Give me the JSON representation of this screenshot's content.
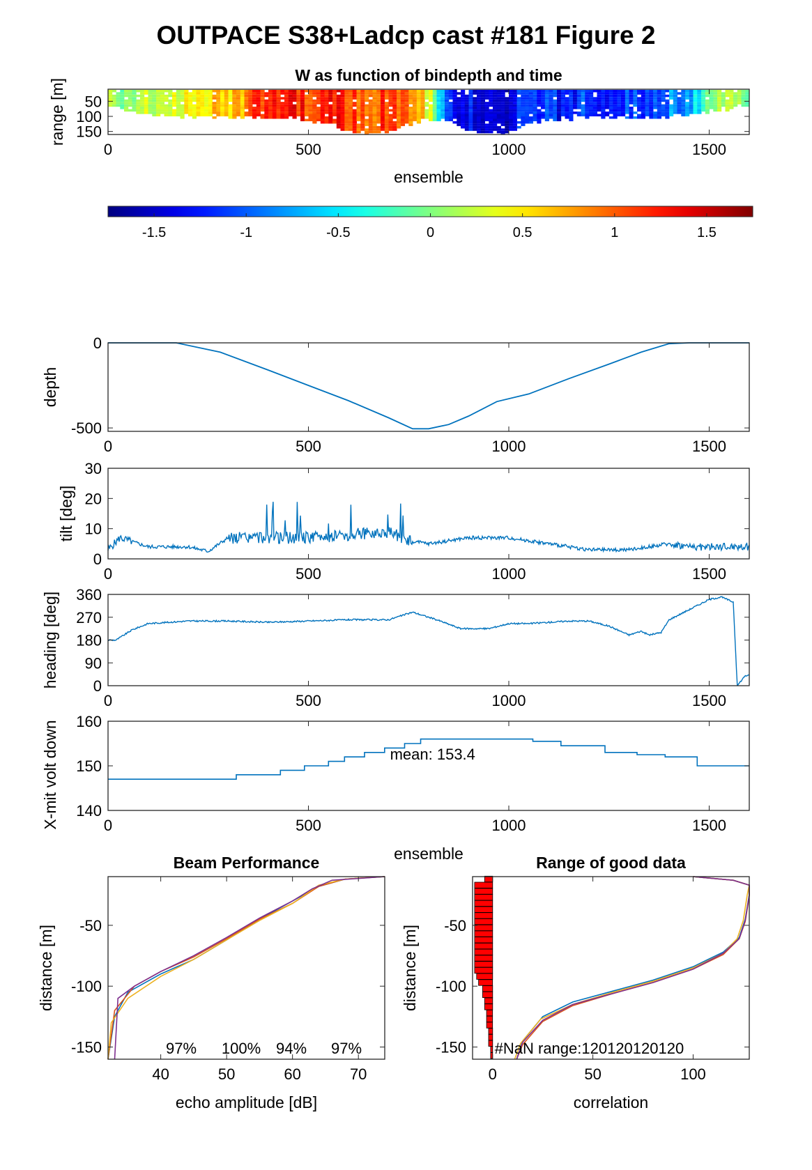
{
  "figure": {
    "title": "OUTPACE S38+Ladcp cast #181 Figure 2"
  },
  "chart_data": [
    {
      "id": "w_panel",
      "type": "heatmap",
      "title": "W as function of bindepth and time",
      "xlabel": "ensemble",
      "ylabel": "range [m]",
      "xlim": [
        0,
        1600
      ],
      "ylim": [
        160,
        10
      ],
      "xticks": [
        "0",
        "500",
        "1000",
        "1500"
      ],
      "yticks": [
        "50",
        "100",
        "150"
      ],
      "colormap": "jet",
      "clim": [
        -1.75,
        1.75
      ],
      "colorbar_ticks": [
        "-1.5",
        "-1",
        "-0.5",
        "0",
        "0.5",
        "1",
        "1.5"
      ],
      "w_profile": {
        "x": [
          0,
          50,
          100,
          150,
          200,
          250,
          300,
          350,
          400,
          450,
          500,
          550,
          600,
          650,
          700,
          750,
          800,
          850,
          900,
          950,
          1000,
          1050,
          1100,
          1150,
          1200,
          1250,
          1300,
          1350,
          1400,
          1450,
          1500,
          1550,
          1600
        ],
        "w": [
          0.1,
          0.0,
          0.3,
          0.4,
          0.5,
          0.6,
          0.6,
          0.9,
          1.2,
          1.3,
          1.1,
          1.2,
          1.2,
          1.0,
          1.1,
          0.9,
          0.4,
          -1.2,
          -1.3,
          -1.3,
          -1.4,
          -1.1,
          -1.2,
          -1.3,
          -1.1,
          -1.2,
          -1.1,
          -1.0,
          -0.9,
          -0.7,
          -0.2,
          0.2,
          0.0
        ],
        "max_range": [
          60,
          80,
          90,
          95,
          100,
          100,
          100,
          100,
          100,
          105,
          110,
          120,
          150,
          155,
          150,
          120,
          110,
          110,
          140,
          155,
          150,
          120,
          110,
          105,
          100,
          100,
          100,
          100,
          100,
          90,
          80,
          70,
          60
        ]
      }
    },
    {
      "id": "depth_panel",
      "type": "line",
      "ylabel": "depth",
      "xlim": [
        0,
        1600
      ],
      "ylim": [
        -520,
        0
      ],
      "xticks": [
        "0",
        "500",
        "1000",
        "1500"
      ],
      "yticks": [
        "0",
        "-500"
      ],
      "x": [
        0,
        170,
        280,
        400,
        500,
        600,
        700,
        760,
        800,
        850,
        900,
        970,
        1050,
        1150,
        1250,
        1330,
        1400,
        1450,
        1600
      ],
      "y": [
        0,
        0,
        -55,
        -160,
        -250,
        -340,
        -440,
        -505,
        -505,
        -480,
        -430,
        -345,
        -300,
        -210,
        -125,
        -55,
        -5,
        0,
        0
      ]
    },
    {
      "id": "tilt_panel",
      "type": "line",
      "ylabel": "tilt [deg]",
      "xlim": [
        0,
        1600
      ],
      "ylim": [
        0,
        30
      ],
      "xticks": [
        "0",
        "500",
        "1000",
        "1500"
      ],
      "yticks": [
        "0",
        "10",
        "20",
        "30"
      ],
      "x": [
        0,
        30,
        100,
        200,
        250,
        300,
        400,
        500,
        600,
        700,
        750,
        800,
        900,
        1000,
        1100,
        1200,
        1300,
        1350,
        1400,
        1450,
        1500,
        1600
      ],
      "y": [
        3,
        7,
        4,
        4,
        2.5,
        7,
        7,
        7,
        8,
        9,
        6,
        5,
        7,
        7,
        5,
        3,
        3,
        4,
        5,
        4,
        4,
        4
      ]
    },
    {
      "id": "heading_panel",
      "type": "line",
      "ylabel": "heading [deg]",
      "xlim": [
        0,
        1600
      ],
      "ylim": [
        0,
        360
      ],
      "xticks": [
        "0",
        "500",
        "1000",
        "1500"
      ],
      "yticks": [
        "0",
        "90",
        "180",
        "270",
        "360"
      ],
      "x": [
        0,
        20,
        60,
        100,
        150,
        200,
        300,
        400,
        500,
        600,
        700,
        760,
        820,
        880,
        950,
        1000,
        1050,
        1100,
        1150,
        1200,
        1250,
        1300,
        1330,
        1350,
        1380,
        1400,
        1450,
        1500,
        1530,
        1560,
        1570,
        1575,
        1590,
        1600
      ],
      "y": [
        180,
        180,
        220,
        245,
        250,
        255,
        255,
        250,
        255,
        260,
        260,
        290,
        260,
        225,
        225,
        245,
        245,
        250,
        255,
        255,
        235,
        200,
        215,
        200,
        210,
        260,
        300,
        340,
        350,
        330,
        0,
        10,
        40,
        40
      ]
    },
    {
      "id": "volt_panel",
      "type": "line",
      "ylabel": "X-mit volt down",
      "xlabel": "ensemble",
      "xlim": [
        0,
        1600
      ],
      "ylim": [
        140,
        160
      ],
      "xticks": [
        "0",
        "500",
        "1000",
        "1500"
      ],
      "yticks": [
        "140",
        "150",
        "160"
      ],
      "annotation": "mean: 153.4",
      "steps_x": [
        0,
        320,
        430,
        490,
        550,
        590,
        640,
        690,
        740,
        780,
        1060,
        1130,
        1240,
        1320,
        1340,
        1390,
        1470,
        1600
      ],
      "steps_y": [
        147,
        148,
        149,
        150,
        151,
        152,
        153,
        154,
        155,
        156,
        155.5,
        154.5,
        153,
        152.5,
        152.5,
        152,
        150,
        150
      ]
    },
    {
      "id": "beam_panel",
      "type": "line",
      "title": "Beam Performance",
      "xlabel": "echo amplitude [dB]",
      "ylabel": "distance [m]",
      "xlim": [
        32,
        74
      ],
      "ylim": [
        -160,
        -10
      ],
      "xticks": [
        "40",
        "50",
        "60",
        "70"
      ],
      "yticks": [
        "-50",
        "-100",
        "-150"
      ],
      "beam_percent": [
        "97%",
        "100%",
        "94%",
        "97%"
      ],
      "series": [
        {
          "color": "#0072BD",
          "x": [
            32,
            33,
            35,
            40,
            45,
            50,
            55,
            60,
            64,
            68,
            74
          ],
          "y": [
            -160,
            -125,
            -105,
            -90,
            -78,
            -62,
            -45,
            -30,
            -18,
            -12,
            -10
          ]
        },
        {
          "color": "#D95319",
          "x": [
            32,
            33,
            36,
            40,
            45,
            50,
            55,
            60,
            64,
            68,
            74
          ],
          "y": [
            -160,
            -120,
            -100,
            -88,
            -76,
            -61,
            -45,
            -32,
            -18,
            -12,
            -10
          ]
        },
        {
          "color": "#EDB120",
          "x": [
            32,
            32.5,
            35,
            40,
            45,
            50,
            55,
            60,
            64,
            68,
            74
          ],
          "y": [
            -160,
            -130,
            -110,
            -92,
            -78,
            -62,
            -46,
            -32,
            -17,
            -12,
            -10
          ]
        },
        {
          "color": "#7E2F8E",
          "x": [
            33,
            33.5,
            36,
            40,
            45,
            50,
            55,
            60,
            63,
            66,
            74
          ],
          "y": [
            -160,
            -110,
            -100,
            -88,
            -75,
            -60,
            -44,
            -30,
            -20,
            -13,
            -10
          ]
        }
      ]
    },
    {
      "id": "range_panel",
      "type": "line",
      "title": "Range of good data",
      "xlabel": "correlation",
      "ylabel": "distance [m]",
      "xlim": [
        -10,
        128
      ],
      "ylim": [
        -160,
        -10
      ],
      "xticks": [
        "0",
        "50",
        "100"
      ],
      "yticks": [
        "-50",
        "-100",
        "-150"
      ],
      "annotation": "#NaN range:120120120120",
      "nan_bars": {
        "depth": [
          -12,
          -17,
          -22,
          -27,
          -32,
          -37,
          -42,
          -47,
          -52,
          -57,
          -62,
          -67,
          -72,
          -77,
          -82,
          -87,
          -92,
          -97,
          -102,
          -107,
          -112,
          -117,
          -122,
          -127,
          -132,
          -137,
          -142,
          -147,
          -152,
          -157
        ],
        "count": [
          4,
          9,
          9,
          9,
          9,
          9,
          9,
          9,
          9,
          9,
          9,
          9,
          9,
          9,
          9,
          9,
          8,
          7,
          5,
          5,
          4,
          4,
          3,
          3,
          3,
          2,
          2,
          2,
          1,
          1
        ]
      },
      "series": [
        {
          "color": "#0072BD",
          "x": [
            12,
            15,
            25,
            40,
            60,
            80,
            100,
            115,
            123,
            126,
            128,
            128,
            120,
            100
          ],
          "y": [
            -160,
            -145,
            -125,
            -113,
            -104,
            -95,
            -84,
            -72,
            -60,
            -45,
            -25,
            -17,
            -13,
            -10
          ]
        },
        {
          "color": "#D95319",
          "x": [
            12,
            15,
            25,
            40,
            60,
            80,
            100,
            115,
            123,
            126,
            128,
            128,
            120,
            100
          ],
          "y": [
            -160,
            -148,
            -129,
            -116,
            -106,
            -97,
            -86,
            -74,
            -61,
            -47,
            -26,
            -17,
            -13,
            -10
          ]
        },
        {
          "color": "#EDB120",
          "x": [
            11,
            14,
            24,
            40,
            60,
            80,
            100,
            115,
            122,
            125,
            127,
            128,
            120,
            100
          ],
          "y": [
            -160,
            -147,
            -127,
            -115,
            -105,
            -96,
            -85,
            -73,
            -61,
            -46,
            -25,
            -17,
            -13,
            -10
          ]
        },
        {
          "color": "#7E2F8E",
          "x": [
            12,
            15,
            25,
            40,
            60,
            80,
            100,
            115,
            123,
            126,
            128,
            128,
            120,
            100
          ],
          "y": [
            -160,
            -146,
            -128,
            -115,
            -106,
            -97,
            -86,
            -73,
            -61,
            -46,
            -25,
            -17,
            -13,
            -10
          ]
        }
      ]
    }
  ]
}
